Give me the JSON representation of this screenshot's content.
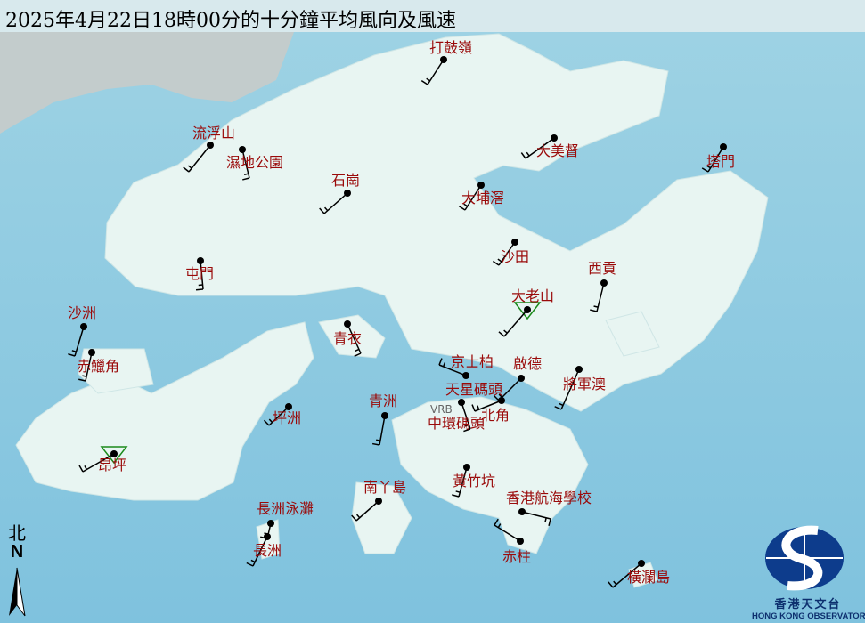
{
  "title": "2025年4月22日18時00分的十分鐘平均風向及風速",
  "colors": {
    "sea": "#8ccbe0",
    "land": "#e8f5f2",
    "label": "#9a0a0a",
    "barb": "#000000",
    "station_dot": "#000000",
    "triangle_marker": "#1a8a1a",
    "logo": "#0d3c8c"
  },
  "stations": [
    {
      "name": "打鼓嶺",
      "wind_from": "SSW"
    },
    {
      "name": "流浮山",
      "wind_from": "SW"
    },
    {
      "name": "濕地公園",
      "wind_from": "S"
    },
    {
      "name": "石崗",
      "wind_from": "SW"
    },
    {
      "name": "大美督",
      "wind_from": "SW"
    },
    {
      "name": "塔門",
      "wind_from": "SSW"
    },
    {
      "name": "大埔滘",
      "wind_from": "SSW"
    },
    {
      "name": "沙田",
      "wind_from": "SSW"
    },
    {
      "name": "屯門",
      "wind_from": "S"
    },
    {
      "name": "西貢",
      "wind_from": "S"
    },
    {
      "name": "大老山",
      "wind_from": "SW",
      "marker": "triangle"
    },
    {
      "name": "沙洲",
      "wind_from": "S"
    },
    {
      "name": "青衣",
      "wind_from": "SSE"
    },
    {
      "name": "赤鱲角",
      "wind_from": "S"
    },
    {
      "name": "京士柏",
      "wind_from": "WNW"
    },
    {
      "name": "啟德",
      "wind_from": "SW"
    },
    {
      "name": "將軍澳",
      "wind_from": "SSW"
    },
    {
      "name": "天星碼頭",
      "wind_from": "SSE"
    },
    {
      "name": "中環碼頭"
    },
    {
      "name": "北角",
      "wind_from": "WSW"
    },
    {
      "name": "坪洲",
      "wind_from": "SW"
    },
    {
      "name": "青洲",
      "wind_from": "S"
    },
    {
      "name": "昂坪",
      "wind_from": "WSW",
      "marker": "triangle"
    },
    {
      "name": "黃竹坑",
      "wind_from": "S"
    },
    {
      "name": "南丫島",
      "wind_from": "SW"
    },
    {
      "name": "長洲泳灘",
      "wind_from": "S"
    },
    {
      "name": "長洲",
      "wind_from": "SSW"
    },
    {
      "name": "香港航海學校",
      "wind_from": "E"
    },
    {
      "name": "赤柱",
      "wind_from": "NW"
    },
    {
      "name": "橫瀾島",
      "wind_from": "SW"
    }
  ],
  "vrb_label": "VRB",
  "north_arrow": {
    "zh": "北",
    "en": "N"
  },
  "logo": {
    "zh": "香港天文台",
    "en": "HONG KONG OBSERVATORY"
  }
}
